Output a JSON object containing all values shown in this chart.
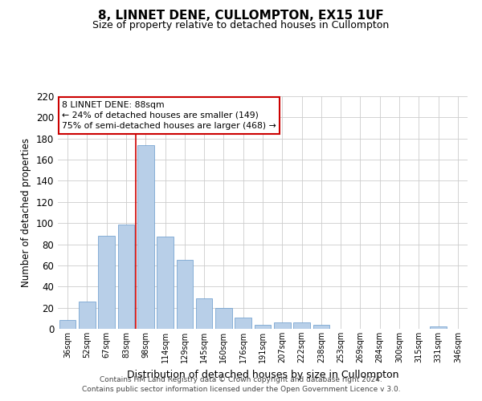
{
  "title": "8, LINNET DENE, CULLOMPTON, EX15 1UF",
  "subtitle": "Size of property relative to detached houses in Cullompton",
  "xlabel": "Distribution of detached houses by size in Cullompton",
  "ylabel": "Number of detached properties",
  "bar_color": "#b8cfe8",
  "bar_edge_color": "#6699cc",
  "categories": [
    "36sqm",
    "52sqm",
    "67sqm",
    "83sqm",
    "98sqm",
    "114sqm",
    "129sqm",
    "145sqm",
    "160sqm",
    "176sqm",
    "191sqm",
    "207sqm",
    "222sqm",
    "238sqm",
    "253sqm",
    "269sqm",
    "284sqm",
    "300sqm",
    "315sqm",
    "331sqm",
    "346sqm"
  ],
  "values": [
    8,
    26,
    88,
    99,
    174,
    87,
    65,
    29,
    20,
    11,
    4,
    6,
    6,
    4,
    0,
    0,
    0,
    0,
    0,
    2,
    0
  ],
  "ylim": [
    0,
    220
  ],
  "yticks": [
    0,
    20,
    40,
    60,
    80,
    100,
    120,
    140,
    160,
    180,
    200,
    220
  ],
  "vline_x": 3.5,
  "vline_color": "#cc0000",
  "annotation_title": "8 LINNET DENE: 88sqm",
  "annotation_line1": "← 24% of detached houses are smaller (149)",
  "annotation_line2": "75% of semi-detached houses are larger (468) →",
  "annotation_box_color": "#ffffff",
  "annotation_box_edge": "#cc0000",
  "footer1": "Contains HM Land Registry data © Crown copyright and database right 2024.",
  "footer2": "Contains public sector information licensed under the Open Government Licence v 3.0.",
  "background_color": "#ffffff",
  "grid_color": "#cccccc"
}
